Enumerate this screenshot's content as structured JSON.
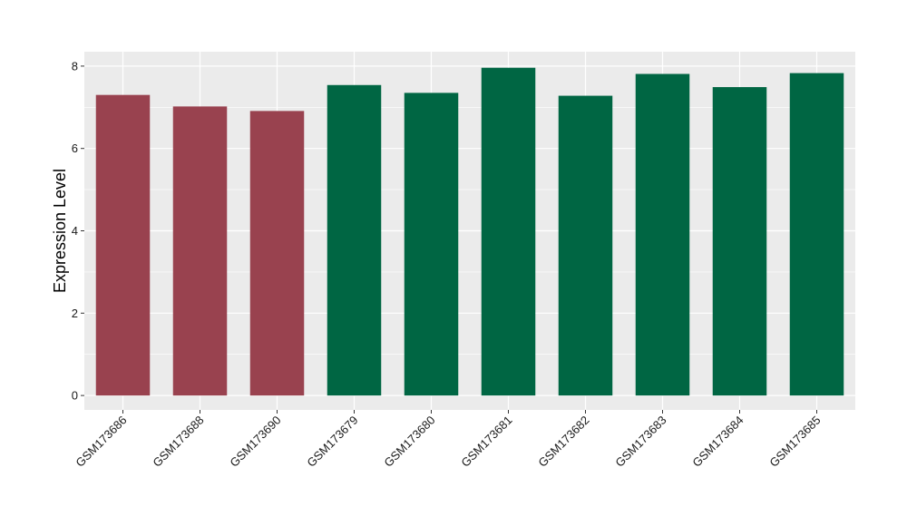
{
  "chart_data": {
    "type": "bar",
    "title": "",
    "xlabel": "",
    "ylabel": "Expression Level",
    "ylim": [
      -0.35,
      8.35
    ],
    "yticks": [
      0,
      2,
      4,
      6,
      8
    ],
    "grid": true,
    "legend": "none",
    "categories": [
      "GSM173686",
      "GSM173688",
      "GSM173690",
      "GSM173679",
      "GSM173680",
      "GSM173681",
      "GSM173682",
      "GSM173683",
      "GSM173684",
      "GSM173685"
    ],
    "values": [
      7.3,
      7.02,
      6.91,
      7.54,
      7.35,
      7.96,
      7.28,
      7.81,
      7.49,
      7.83
    ],
    "bar_colors": [
      "#99424f",
      "#99424f",
      "#99424f",
      "#006643",
      "#006643",
      "#006643",
      "#006643",
      "#006643",
      "#006643",
      "#006643"
    ],
    "panel_background": "#ebebeb",
    "grid_color": "#ffffff"
  }
}
